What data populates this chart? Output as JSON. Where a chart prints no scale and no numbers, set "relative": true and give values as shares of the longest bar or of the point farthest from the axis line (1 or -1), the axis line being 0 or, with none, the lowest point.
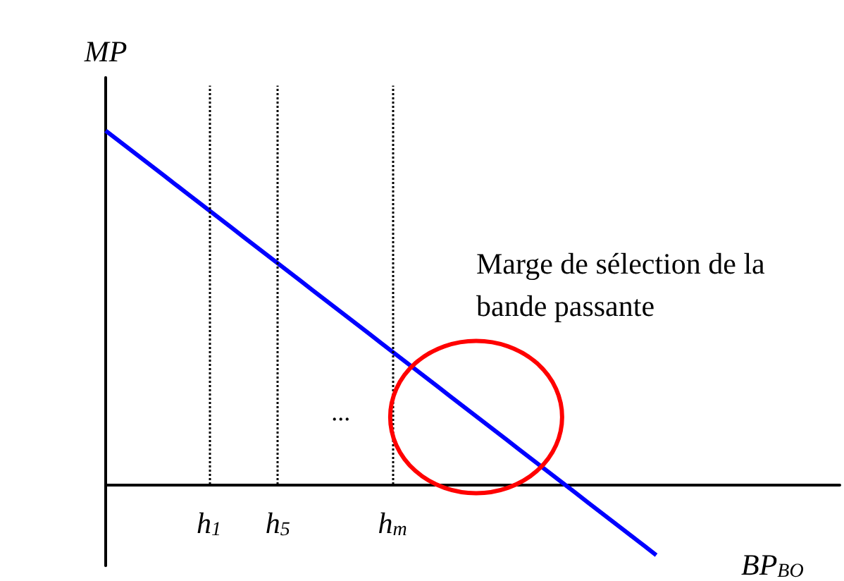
{
  "chart_data": {
    "type": "line",
    "relative": true,
    "xlabel": "BP$_{BO}$",
    "ylabel": "MP",
    "categories": [
      null,
      null,
      null,
      null,
      null,
      null,
      null,
      null,
      null,
      "h$_{1}$",
      null,
      null,
      null,
      null,
      null,
      "h$_{5}$",
      null,
      null,
      null,
      null,
      null,
      null,
      null,
      null,
      null,
      "h$_{m}$",
      null,
      null,
      null,
      null,
      null,
      null,
      null,
      null,
      null,
      null,
      null,
      null,
      null,
      null,
      null,
      null,
      null,
      null,
      null,
      null,
      null,
      null,
      null,
      null,
      null,
      null,
      null,
      null,
      null,
      null,
      null,
      null,
      null,
      null,
      null,
      null,
      null,
      null,
      null
    ],
    "series": [
      {
        "color": "#0000ff",
        "values": [
          1,
          0.975,
          0.95,
          0.925,
          0.9,
          0.875,
          0.85,
          0.825,
          0.8,
          0.775,
          0.75,
          0.725,
          0.7,
          0.675,
          0.65,
          0.625,
          0.6,
          0.575,
          0.55,
          0.525,
          0.5,
          0.475,
          0.45,
          0.425,
          0.4,
          0.375,
          0.35,
          0.325,
          0.3,
          0.275,
          0.25,
          0.225,
          0.2,
          0.175,
          0.15,
          0.125,
          0.1,
          0.075,
          0.05,
          0.025,
          0,
          -0.025,
          -0.05,
          -0.075,
          -0.1,
          -0.125,
          -0.15,
          -0.175,
          -0.2,
          null,
          null,
          null,
          null,
          null,
          null,
          null,
          null,
          null,
          null,
          null,
          null,
          null,
          null,
          null,
          null
        ]
      }
    ],
    "ref_lines": [
      {
        "axis": "x",
        "value": "h$_{1}$",
        "color": "#000000",
        "line_style": "dotted"
      },
      {
        "axis": "x",
        "value": "h$_{5}$",
        "color": "#000000",
        "line_style": "dotted"
      },
      {
        "axis": "x",
        "value": "h$_{m}$",
        "color": "#000000",
        "line_style": "dotted"
      }
    ],
    "annotations": [
      "Marge de sélection de la bande passante",
      "..."
    ],
    "tick_labels": "x",
    "marker": "none",
    "line_style": "solid"
  }
}
